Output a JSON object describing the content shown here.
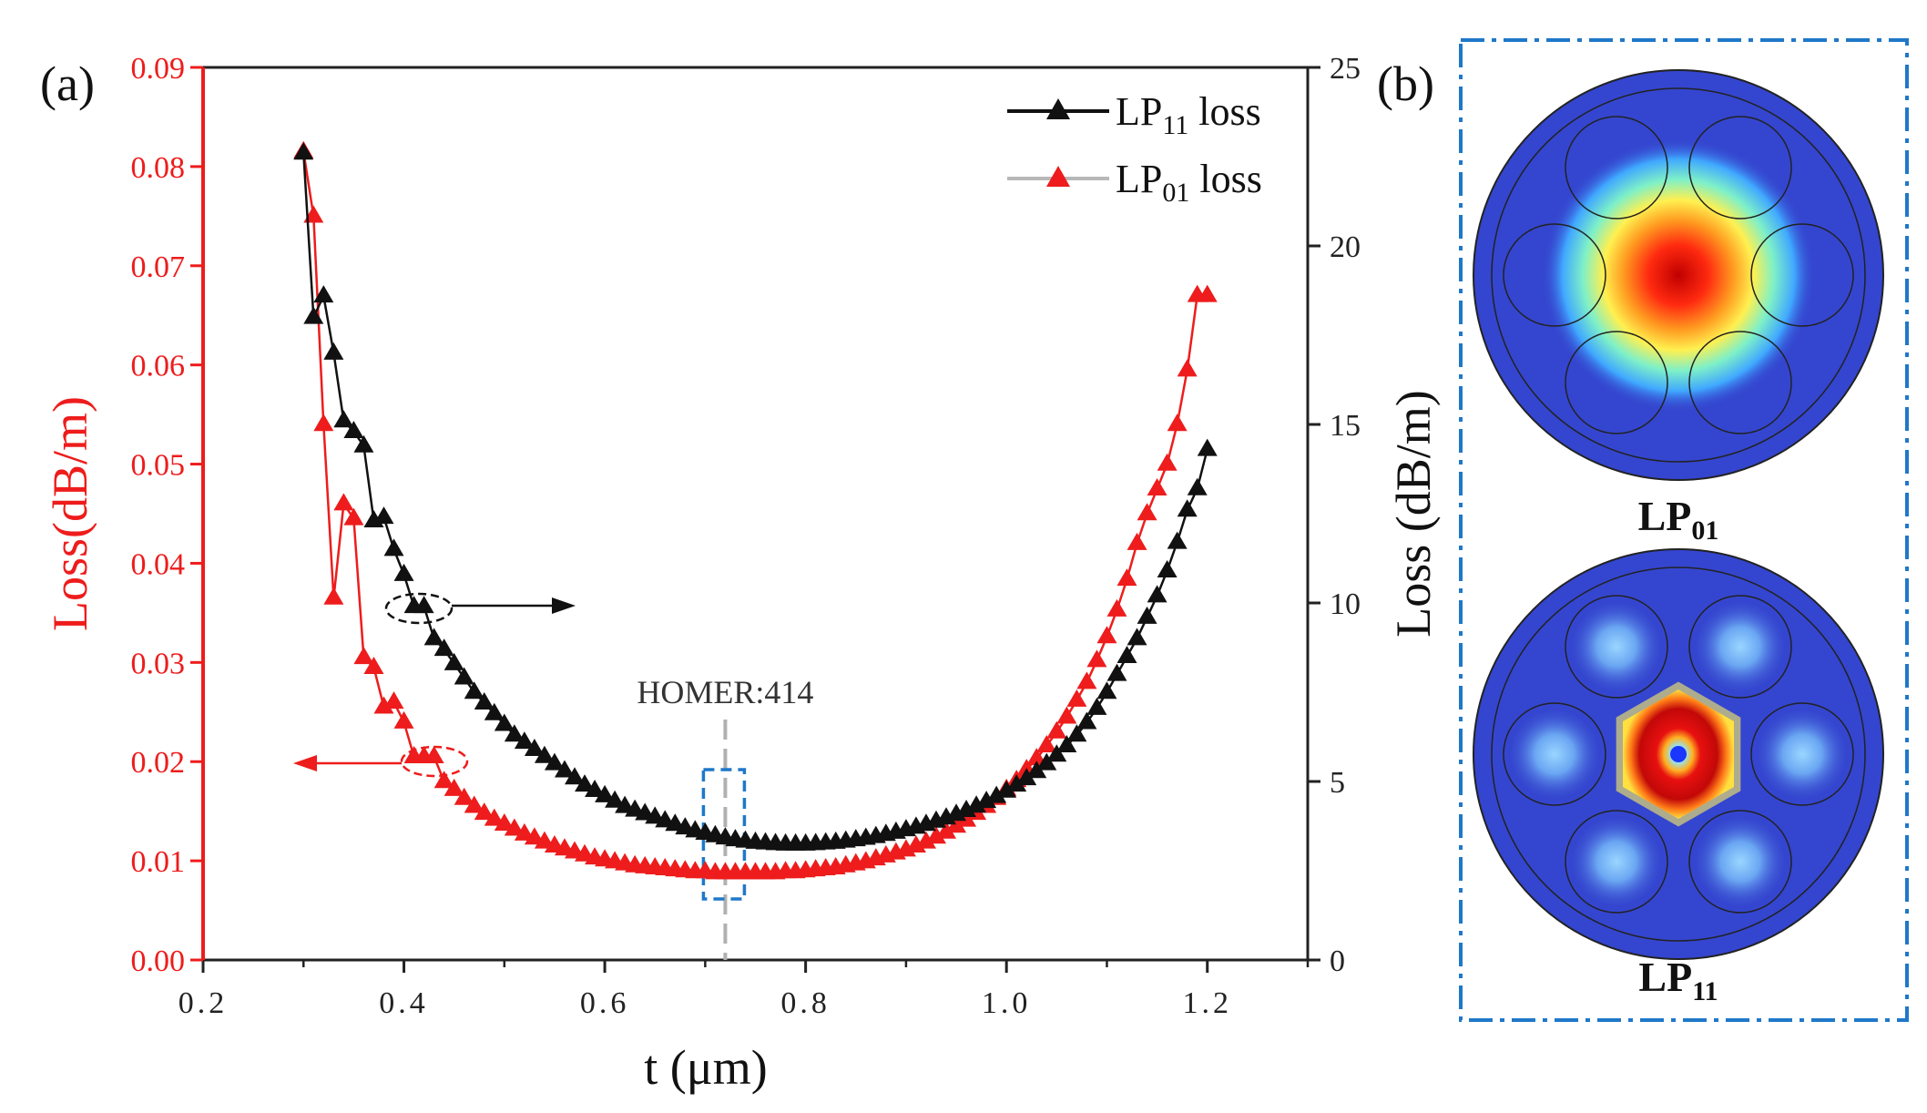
{
  "panel_labels": {
    "a": "(a)",
    "b": "(b)"
  },
  "chart_data": {
    "type": "line",
    "xlabel": "t (μm)",
    "xlim": [
      0.2,
      1.3
    ],
    "x_ticks": [
      "0.2",
      "0.4",
      "0.6",
      "0.8",
      "1.0",
      "1.2"
    ],
    "x_tick_values": [
      0.2,
      0.4,
      0.6,
      0.8,
      1.0,
      1.2
    ],
    "y_left": {
      "label": "Loss(dB/m)",
      "color": "#ee1c1c",
      "lim": [
        0,
        0.09
      ],
      "ticks": [
        "0.00",
        "0.01",
        "0.02",
        "0.03",
        "0.04",
        "0.05",
        "0.06",
        "0.07",
        "0.08",
        "0.09"
      ],
      "tick_values": [
        0,
        0.01,
        0.02,
        0.03,
        0.04,
        0.05,
        0.06,
        0.07,
        0.08,
        0.09
      ]
    },
    "y_right": {
      "label": "Loss (dB/m)",
      "color": "#222222",
      "lim": [
        0,
        25
      ],
      "ticks": [
        "0",
        "5",
        "10",
        "15",
        "20",
        "25"
      ],
      "tick_values": [
        0,
        5,
        10,
        15,
        20,
        25
      ]
    },
    "legend": {
      "position": "top-right",
      "entries": [
        {
          "base": "LP",
          "sub": "11",
          "suffix": " loss",
          "series": "LP11"
        },
        {
          "base": "LP",
          "sub": "01",
          "suffix": " loss",
          "series": "LP01"
        }
      ]
    },
    "annotation": {
      "text": "HOMER:414",
      "x": 0.72
    },
    "series": [
      {
        "name": "LP11 loss",
        "axis": "right",
        "color": "#111111",
        "marker": "triangle",
        "x": [
          0.3,
          0.31,
          0.32,
          0.33,
          0.34,
          0.35,
          0.36,
          0.37,
          0.38,
          0.39,
          0.4,
          0.41,
          0.42,
          0.43,
          0.44,
          0.45,
          0.46,
          0.47,
          0.48,
          0.49,
          0.5,
          0.51,
          0.52,
          0.53,
          0.54,
          0.55,
          0.56,
          0.57,
          0.58,
          0.59,
          0.6,
          0.61,
          0.62,
          0.63,
          0.64,
          0.65,
          0.66,
          0.67,
          0.68,
          0.69,
          0.7,
          0.71,
          0.72,
          0.73,
          0.74,
          0.75,
          0.76,
          0.77,
          0.78,
          0.79,
          0.8,
          0.81,
          0.82,
          0.83,
          0.84,
          0.85,
          0.86,
          0.87,
          0.88,
          0.89,
          0.9,
          0.91,
          0.92,
          0.93,
          0.94,
          0.95,
          0.96,
          0.97,
          0.98,
          0.99,
          1.0,
          1.01,
          1.02,
          1.03,
          1.04,
          1.05,
          1.06,
          1.07,
          1.08,
          1.09,
          1.1,
          1.11,
          1.12,
          1.13,
          1.14,
          1.15,
          1.16,
          1.17,
          1.18,
          1.19,
          1.2
        ],
        "values": [
          22.6,
          18.0,
          18.6,
          17.0,
          15.1,
          14.8,
          14.4,
          12.3,
          12.4,
          11.5,
          10.8,
          9.9,
          9.9,
          9.0,
          8.7,
          8.3,
          7.9,
          7.5,
          7.2,
          6.9,
          6.6,
          6.3,
          6.1,
          5.9,
          5.7,
          5.5,
          5.3,
          5.1,
          4.9,
          4.75,
          4.6,
          4.45,
          4.3,
          4.2,
          4.1,
          4.0,
          3.9,
          3.8,
          3.7,
          3.62,
          3.55,
          3.48,
          3.42,
          3.37,
          3.33,
          3.3,
          3.28,
          3.26,
          3.25,
          3.25,
          3.25,
          3.26,
          3.28,
          3.3,
          3.33,
          3.37,
          3.41,
          3.46,
          3.52,
          3.58,
          3.65,
          3.72,
          3.8,
          3.89,
          3.98,
          4.08,
          4.19,
          4.31,
          4.44,
          4.58,
          4.73,
          4.9,
          5.08,
          5.28,
          5.5,
          5.74,
          6.0,
          6.3,
          6.65,
          7.05,
          7.5,
          8.0,
          8.5,
          9.0,
          9.6,
          10.2,
          10.9,
          11.7,
          12.6,
          13.2,
          14.3
        ]
      },
      {
        "name": "LP01 loss",
        "axis": "left",
        "color": "#ee1c1c",
        "marker": "triangle",
        "x": [
          0.3,
          0.31,
          0.32,
          0.33,
          0.34,
          0.35,
          0.36,
          0.37,
          0.38,
          0.39,
          0.4,
          0.41,
          0.42,
          0.43,
          0.44,
          0.45,
          0.46,
          0.47,
          0.48,
          0.49,
          0.5,
          0.51,
          0.52,
          0.53,
          0.54,
          0.55,
          0.56,
          0.57,
          0.58,
          0.59,
          0.6,
          0.61,
          0.62,
          0.63,
          0.64,
          0.65,
          0.66,
          0.67,
          0.68,
          0.69,
          0.7,
          0.71,
          0.72,
          0.73,
          0.74,
          0.75,
          0.76,
          0.77,
          0.78,
          0.79,
          0.8,
          0.81,
          0.82,
          0.83,
          0.84,
          0.85,
          0.86,
          0.87,
          0.88,
          0.89,
          0.9,
          0.91,
          0.92,
          0.93,
          0.94,
          0.95,
          0.96,
          0.97,
          0.98,
          0.99,
          1.0,
          1.01,
          1.02,
          1.03,
          1.04,
          1.05,
          1.06,
          1.07,
          1.08,
          1.09,
          1.1,
          1.11,
          1.12,
          1.13,
          1.14,
          1.15,
          1.16,
          1.17,
          1.18,
          1.19,
          1.2
        ],
        "values": [
          0.0815,
          0.075,
          0.054,
          0.0365,
          0.046,
          0.0445,
          0.0305,
          0.0295,
          0.0255,
          0.026,
          0.024,
          0.0205,
          0.0205,
          0.0205,
          0.018,
          0.0172,
          0.0163,
          0.0155,
          0.0148,
          0.0142,
          0.0137,
          0.0132,
          0.0127,
          0.0123,
          0.0119,
          0.0115,
          0.0112,
          0.0109,
          0.0106,
          0.0103,
          0.0101,
          0.0099,
          0.0097,
          0.0095,
          0.0094,
          0.0093,
          0.0092,
          0.0091,
          0.009,
          0.0089,
          0.0089,
          0.0088,
          0.0088,
          0.0088,
          0.0088,
          0.0088,
          0.0088,
          0.0088,
          0.0089,
          0.0089,
          0.009,
          0.0091,
          0.0092,
          0.0093,
          0.0095,
          0.0097,
          0.0099,
          0.0102,
          0.0105,
          0.0108,
          0.0111,
          0.0115,
          0.0119,
          0.0124,
          0.0129,
          0.0135,
          0.0141,
          0.0148,
          0.0155,
          0.0163,
          0.0172,
          0.0181,
          0.0192,
          0.0203,
          0.0216,
          0.023,
          0.0245,
          0.0262,
          0.028,
          0.0302,
          0.0326,
          0.0353,
          0.0384,
          0.042,
          0.045,
          0.0475,
          0.05,
          0.054,
          0.0595,
          0.067,
          0.067
        ]
      }
    ]
  },
  "panel_b": {
    "modes": [
      {
        "base": "LP",
        "sub": "01",
        "pattern": "fundamental"
      },
      {
        "base": "LP",
        "sub": "11",
        "pattern": "higher-order"
      }
    ]
  }
}
